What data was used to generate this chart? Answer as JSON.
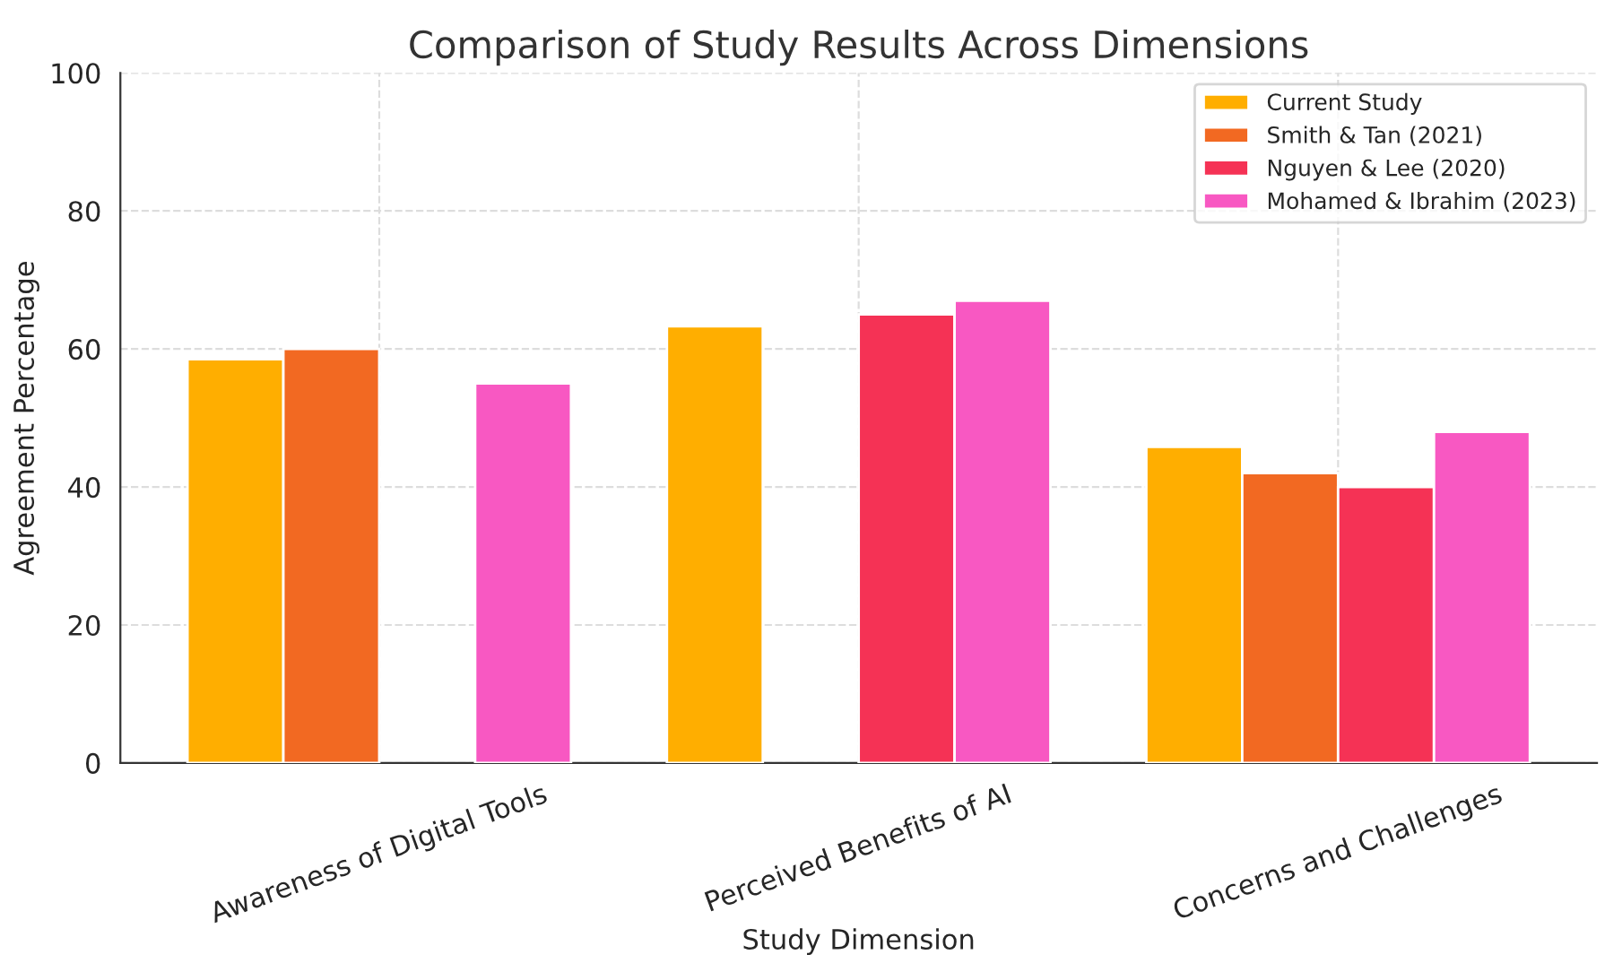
{
  "chart_data": {
    "type": "bar",
    "title": "Comparison of Study Results Across Dimensions",
    "xlabel": "Study Dimension",
    "ylabel": "Agreement Percentage",
    "categories": [
      "Awareness of Digital Tools",
      "Perceived Benefits of AI",
      "Concerns and Challenges"
    ],
    "series": [
      {
        "name": "Current Study",
        "color": "#ffae00",
        "values": [
          58.5,
          63.3,
          45.8
        ]
      },
      {
        "name": "Smith & Tan (2021)",
        "color": "#f26922",
        "values": [
          60,
          null,
          42
        ]
      },
      {
        "name": "Nguyen & Lee (2020)",
        "color": "#f53255",
        "values": [
          null,
          65,
          40
        ]
      },
      {
        "name": "Mohamed & Ibrahim (2023)",
        "color": "#f858c2",
        "values": [
          55,
          67,
          48
        ]
      }
    ],
    "ylim": [
      0,
      100
    ],
    "yticks": [
      0,
      20,
      40,
      60,
      80,
      100
    ],
    "grid": true,
    "legend": "top right"
  }
}
